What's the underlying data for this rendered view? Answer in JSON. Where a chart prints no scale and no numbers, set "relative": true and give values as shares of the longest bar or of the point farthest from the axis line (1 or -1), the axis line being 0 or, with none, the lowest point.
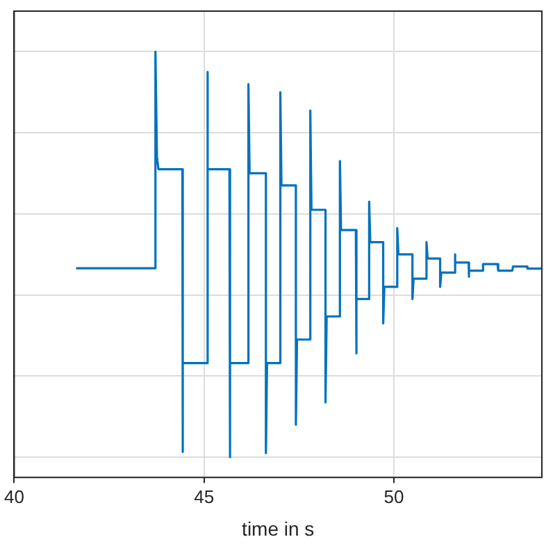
{
  "chart_data": {
    "type": "line",
    "xlabel": "time in s",
    "relative": true,
    "grid": true,
    "marker": "none",
    "line_style": "solid",
    "legend": false,
    "xlim": [
      40,
      53.9
    ],
    "xticks": [
      40,
      45,
      50
    ],
    "x": [
      41.63,
      43.72,
      43.72,
      43.76,
      43.8,
      44.43,
      44.43,
      44.45,
      45.08,
      45.08,
      45.11,
      45.67,
      45.67,
      45.7,
      46.17,
      46.17,
      46.2,
      46.63,
      46.63,
      46.66,
      47.01,
      47.01,
      47.04,
      47.42,
      47.42,
      47.45,
      47.8,
      47.8,
      47.83,
      48.2,
      48.2,
      48.23,
      48.58,
      48.58,
      48.61,
      49.0,
      49.0,
      49.03,
      49.35,
      49.35,
      49.38,
      49.72,
      49.72,
      49.75,
      50.09,
      50.09,
      50.12,
      50.49,
      50.49,
      50.52,
      50.86,
      50.86,
      50.89,
      51.22,
      51.22,
      51.25,
      51.6,
      51.6,
      51.63,
      51.97,
      51.97,
      51.99,
      52.33,
      52.35,
      52.73,
      52.75,
      53.12,
      53.14,
      53.5,
      53.52,
      53.9
    ],
    "series": [
      {
        "color": "#0072bd",
        "values": [
          0.466,
          0.466,
          1.0,
          0.74,
          0.71,
          0.71,
          0.013,
          0.232,
          0.232,
          0.95,
          0.71,
          0.71,
          0.0,
          0.232,
          0.232,
          0.92,
          0.7,
          0.7,
          0.01,
          0.232,
          0.232,
          0.9,
          0.67,
          0.67,
          0.08,
          0.29,
          0.29,
          0.855,
          0.61,
          0.61,
          0.135,
          0.347,
          0.347,
          0.73,
          0.56,
          0.56,
          0.256,
          0.39,
          0.39,
          0.63,
          0.53,
          0.53,
          0.33,
          0.42,
          0.42,
          0.565,
          0.5,
          0.5,
          0.39,
          0.44,
          0.44,
          0.53,
          0.49,
          0.49,
          0.42,
          0.455,
          0.455,
          0.5,
          0.48,
          0.48,
          0.445,
          0.46,
          0.46,
          0.476,
          0.476,
          0.46,
          0.46,
          0.47,
          0.47,
          0.465,
          0.465
        ]
      }
    ]
  }
}
